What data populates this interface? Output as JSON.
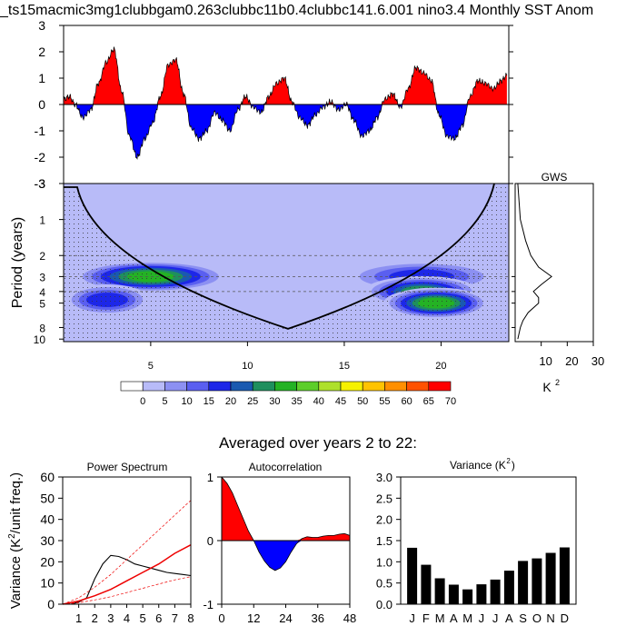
{
  "title": "_ts15macmic3mg1clubbgam0.263clubbc11b0.4clubbc141.6.001 nino3.4 Monthly SST Anom",
  "subtitle": "Averaged over years 2 to 22:",
  "chart_data": [
    {
      "id": "timeseries",
      "type": "area",
      "ylim": [
        -3,
        3
      ],
      "yticks": [
        "3",
        "2",
        "1",
        "0",
        "-1",
        "-2",
        "-3"
      ],
      "colors": {
        "positive": "#ff0000",
        "negative": "#0000ff"
      },
      "series": [
        {
          "x_years": [
            0.0,
            0.3,
            0.6,
            1.0,
            1.4,
            1.8,
            2.2,
            2.6,
            3.0,
            3.4,
            3.8,
            4.2,
            4.6,
            5.0,
            5.4,
            5.8,
            6.2,
            6.6,
            7.0,
            7.4,
            7.8,
            8.2,
            8.6,
            9.0,
            9.4,
            9.8,
            10.2,
            10.6,
            11.0,
            11.4,
            11.8,
            12.2,
            12.6,
            13.0,
            13.4,
            13.8,
            14.2,
            14.6,
            15.0,
            15.4,
            15.8,
            16.2,
            16.6,
            17.0,
            17.4,
            17.8,
            18.2,
            18.6,
            19.0,
            19.4,
            19.8,
            20.2,
            20.6,
            21.0,
            21.4,
            21.8,
            22.2,
            22.6,
            22.9
          ],
          "values": [
            0.2,
            0.3,
            0.0,
            -0.5,
            -0.2,
            0.8,
            1.6,
            2.1,
            0.5,
            -1.2,
            -2.0,
            -1.3,
            -0.7,
            0.3,
            1.5,
            1.7,
            0.4,
            -0.9,
            -1.3,
            -1.0,
            -0.3,
            -0.6,
            -1.0,
            -0.2,
            0.3,
            -0.1,
            -0.3,
            0.3,
            0.8,
            1.0,
            0.1,
            -0.5,
            -0.8,
            -0.4,
            -0.1,
            0.1,
            -0.2,
            0.0,
            -0.6,
            -1.2,
            -1.0,
            -0.5,
            0.2,
            0.4,
            -0.1,
            0.6,
            1.4,
            1.2,
            0.9,
            -0.4,
            -1.2,
            -1.3,
            -0.8,
            0.3,
            0.9,
            0.8,
            0.6,
            0.9,
            1.1
          ]
        }
      ]
    },
    {
      "id": "wavelet",
      "type": "heatmap",
      "ylabel": "Period (years)",
      "ytick_labels": [
        "1",
        "2",
        "3",
        "4",
        "5",
        "8",
        "10"
      ],
      "xtick_labels": [
        "5",
        "10",
        "15",
        "20"
      ],
      "colorbar_labels": [
        "0",
        "5",
        "10",
        "15",
        "20",
        "25",
        "30",
        "35",
        "40",
        "45",
        "50",
        "55",
        "60",
        "65",
        "70"
      ],
      "colorbar_colors": [
        "#ffffff",
        "#b8bbf8",
        "#8c90f2",
        "#5a5ff0",
        "#1d27e8",
        "#1a59b0",
        "#1f8f5e",
        "#24b224",
        "#5cce2a",
        "#aee02b",
        "#f6f100",
        "#ffc300",
        "#ff8f00",
        "#ff5200",
        "#ff0000"
      ],
      "bands": [
        {
          "period": 3.0,
          "x": [
            1,
            8
          ],
          "level": 35
        },
        {
          "period": 3.0,
          "x": [
            15,
            22
          ],
          "level": 20
        },
        {
          "period": 4.0,
          "x": [
            16,
            21
          ],
          "level": 30
        },
        {
          "period": 5.0,
          "x": [
            17,
            21.5
          ],
          "level": 35
        },
        {
          "period": 4.7,
          "x": [
            0.5,
            4
          ],
          "level": 20
        }
      ]
    },
    {
      "id": "gws",
      "type": "line",
      "title": "GWS",
      "xlabel": "K2",
      "xtick_labels": [
        "10",
        "20",
        "30"
      ],
      "xlim": [
        0,
        30
      ],
      "series": [
        {
          "period": [
            0.5,
            1,
            1.5,
            2,
            2.5,
            3,
            3.5,
            4,
            4.5,
            5,
            6,
            7,
            8,
            10
          ],
          "values": [
            1,
            2,
            4,
            6,
            9,
            14,
            10,
            7,
            9,
            9,
            5,
            3,
            2,
            1
          ]
        }
      ]
    },
    {
      "id": "power",
      "type": "line",
      "title": "Power Spectrum",
      "ylabel": "Variance (K2/unit freq.)",
      "xtick_labels": [
        "1",
        "2",
        "3",
        "4",
        "5",
        "6",
        "7",
        "8"
      ],
      "ytick_labels": [
        "60",
        "50",
        "40",
        "30",
        "20",
        "10",
        "0"
      ],
      "xlim": [
        0,
        8
      ],
      "ylim": [
        0,
        60
      ],
      "series": [
        {
          "x": [
            0,
            0.5,
            1,
            1.5,
            2,
            2.5,
            3,
            3.5,
            4,
            4.5,
            5,
            5.5,
            6,
            6.5,
            7,
            7.5,
            8
          ],
          "values": [
            0,
            0,
            1,
            3,
            12,
            19,
            23,
            22.5,
            21,
            19,
            18,
            17,
            16,
            15,
            14.5,
            14,
            13.5
          ]
        },
        {
          "x": [
            0,
            1,
            2,
            3,
            4,
            5,
            6,
            7,
            8
          ],
          "values": [
            0,
            1.5,
            4,
            7,
            11,
            15,
            19,
            24,
            28
          ]
        },
        {
          "x": [
            0,
            1,
            2,
            3,
            4,
            5,
            6,
            7,
            8
          ],
          "values": [
            0,
            3,
            8,
            14,
            21,
            28,
            35,
            42,
            49
          ]
        },
        {
          "x": [
            0,
            1,
            2,
            3,
            4,
            5,
            6,
            7,
            8
          ],
          "values": [
            0,
            0.7,
            2,
            3.5,
            5.5,
            7.5,
            9.5,
            11.5,
            13
          ]
        }
      ]
    },
    {
      "id": "autocorr",
      "type": "area",
      "title": "Autocorrelation",
      "xtick_labels": [
        "0",
        "12",
        "24",
        "36",
        "48"
      ],
      "ytick_labels": [
        "1",
        "0",
        "-1"
      ],
      "xlim": [
        0,
        48
      ],
      "ylim": [
        -1,
        1
      ],
      "series": [
        {
          "x": [
            0,
            2,
            4,
            6,
            8,
            10,
            12,
            14,
            16,
            18,
            20,
            22,
            24,
            26,
            28,
            30,
            32,
            34,
            36,
            38,
            40,
            42,
            44,
            46,
            48
          ],
          "values": [
            1.0,
            0.9,
            0.75,
            0.55,
            0.35,
            0.15,
            0.0,
            -0.18,
            -0.32,
            -0.42,
            -0.47,
            -0.43,
            -0.33,
            -0.18,
            -0.05,
            0.03,
            0.06,
            0.05,
            0.05,
            0.07,
            0.08,
            0.08,
            0.1,
            0.11,
            0.08
          ]
        }
      ]
    },
    {
      "id": "variance",
      "type": "bar",
      "title": "Variance (K2)",
      "categories": [
        "J",
        "F",
        "M",
        "A",
        "M",
        "J",
        "J",
        "A",
        "S",
        "O",
        "N",
        "D"
      ],
      "values": [
        1.33,
        0.93,
        0.61,
        0.46,
        0.35,
        0.47,
        0.58,
        0.79,
        1.02,
        1.08,
        1.21,
        1.34
      ],
      "ytick_labels": [
        "3.0",
        "2.5",
        "2.0",
        "1.5",
        "1.0",
        "0.5",
        "0.0"
      ],
      "ylim": [
        0,
        3.0
      ]
    }
  ]
}
